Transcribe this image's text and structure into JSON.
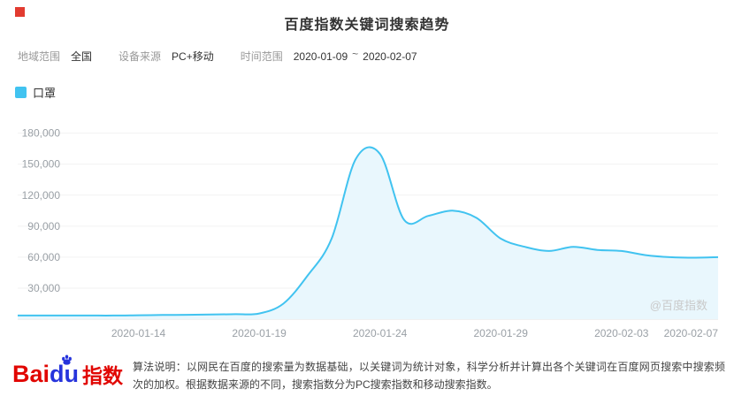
{
  "page": {
    "title": "百度指数关键词搜索趋势",
    "watermark": "@百度指数"
  },
  "filters": {
    "region_label": "地域范围",
    "region_value": "全国",
    "device_label": "设备来源",
    "device_value": "PC+移动",
    "time_label": "时间范围",
    "time_start": "2020-01-09",
    "time_separator": "~",
    "time_end": "2020-02-07"
  },
  "legend": {
    "keyword": "口罩",
    "color": "#41c3f0"
  },
  "footer": {
    "logo_bai": "Bai",
    "logo_du": "du",
    "logo_suffix": "指数",
    "description": "算法说明：以网民在百度的搜索量为数据基础，以关键词为统计对象，科学分析并计算出各个关键词在百度网页搜索中搜索频次的加权。根据数据来源的不同，搜索指数分为PC搜索指数和移动搜索指数。"
  },
  "chart_data": {
    "type": "area",
    "title": "百度指数关键词搜索趋势",
    "legend_position": "top-left",
    "grid": true,
    "ylabel": "",
    "xlabel": "",
    "ylim": [
      0,
      190000
    ],
    "x": [
      "2020-01-09",
      "2020-01-10",
      "2020-01-11",
      "2020-01-12",
      "2020-01-13",
      "2020-01-14",
      "2020-01-15",
      "2020-01-16",
      "2020-01-17",
      "2020-01-18",
      "2020-01-19",
      "2020-01-20",
      "2020-01-21",
      "2020-01-22",
      "2020-01-23",
      "2020-01-24",
      "2020-01-25",
      "2020-01-26",
      "2020-01-27",
      "2020-01-28",
      "2020-01-29",
      "2020-01-30",
      "2020-01-31",
      "2020-02-01",
      "2020-02-02",
      "2020-02-03",
      "2020-02-04",
      "2020-02-05",
      "2020-02-06",
      "2020-02-07"
    ],
    "x_tick_indices": [
      5,
      10,
      15,
      20,
      25,
      29
    ],
    "y_ticks": [
      30000,
      60000,
      90000,
      120000,
      150000,
      180000
    ],
    "y_tick_labels": [
      "30,000",
      "60,000",
      "90,000",
      "120,000",
      "150,000",
      "180,000"
    ],
    "series": [
      {
        "name": "口罩",
        "color": "#41c3f0",
        "fill": "#e9f7fd",
        "values": [
          3500,
          3500,
          3500,
          3500,
          3500,
          3800,
          4000,
          4200,
          4500,
          4800,
          5500,
          15000,
          42000,
          78000,
          155000,
          160000,
          96000,
          100000,
          105000,
          98000,
          78000,
          70000,
          66000,
          70000,
          67000,
          66000,
          62000,
          60000,
          59500,
          60000
        ]
      }
    ]
  }
}
